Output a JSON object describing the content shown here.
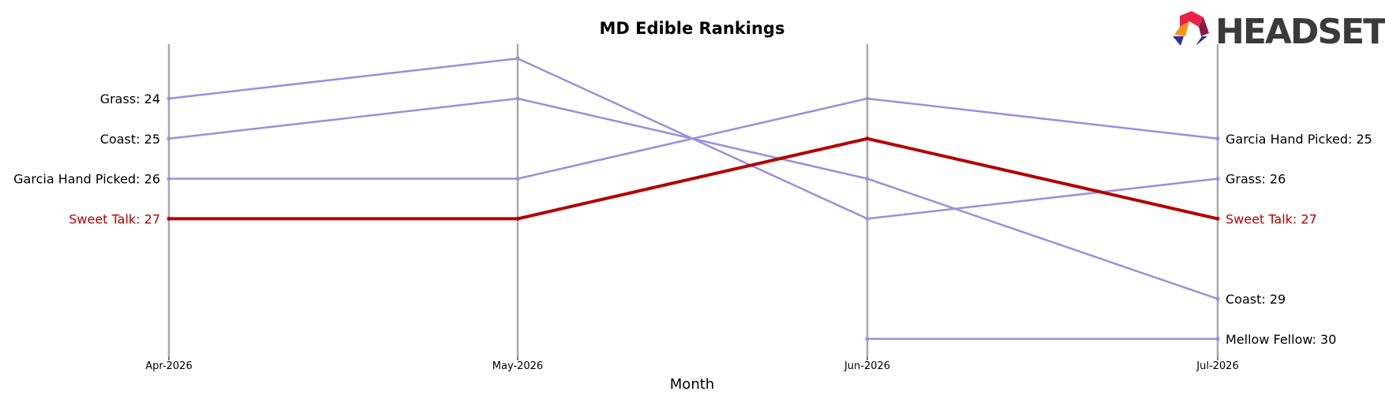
{
  "chart_data": {
    "type": "line",
    "title": "MD Edible Rankings",
    "xlabel": "Month",
    "ylabel": "",
    "x": [
      "Apr-2026",
      "May-2026",
      "Jun-2026",
      "Jul-2026"
    ],
    "ylim": [
      22.8,
      30.4
    ],
    "y_inverted": true,
    "highlight_color": "#b30000",
    "series_color": "#9b8fdc",
    "axis_color": "#aaaaaa",
    "series": [
      {
        "name": "Grass",
        "values": [
          24,
          23,
          27,
          26
        ],
        "highlight": false
      },
      {
        "name": "Coast",
        "values": [
          25,
          24,
          26,
          29
        ],
        "highlight": false
      },
      {
        "name": "Garcia Hand Picked",
        "values": [
          26,
          26,
          24,
          25
        ],
        "highlight": false
      },
      {
        "name": "Sweet Talk",
        "values": [
          27,
          27,
          25,
          27
        ],
        "highlight": true
      },
      {
        "name": "Mellow Fellow",
        "values": [
          null,
          null,
          30,
          30
        ],
        "highlight": false
      }
    ],
    "left_labels": [
      {
        "text": "Grass: 24",
        "rank": 24,
        "highlight": false
      },
      {
        "text": "Coast: 25",
        "rank": 25,
        "highlight": false
      },
      {
        "text": "Garcia Hand Picked: 26",
        "rank": 26,
        "highlight": false
      },
      {
        "text": "Sweet Talk: 27",
        "rank": 27,
        "highlight": true
      }
    ],
    "right_labels": [
      {
        "text": "Garcia Hand Picked: 25",
        "rank": 25,
        "highlight": false
      },
      {
        "text": "Grass: 26",
        "rank": 26,
        "highlight": false
      },
      {
        "text": "Sweet Talk: 27",
        "rank": 27,
        "highlight": true
      },
      {
        "text": "Coast: 29",
        "rank": 29,
        "highlight": false
      },
      {
        "text": "Mellow Fellow: 30",
        "rank": 30,
        "highlight": false
      }
    ]
  },
  "logo": {
    "text": "HEADSET",
    "colors": [
      "#e8234a",
      "#f7941d",
      "#8a1a4a",
      "#2e3192"
    ]
  }
}
